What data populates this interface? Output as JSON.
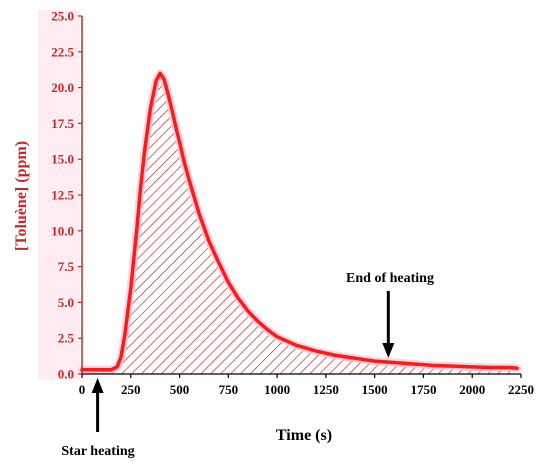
{
  "chart_data": {
    "type": "area",
    "xlabel": "Time (s)",
    "ylabel": "[Toluène] (ppm)",
    "xlim": [
      0,
      2250
    ],
    "ylim": [
      0,
      25
    ],
    "x_ticks": [
      0,
      250,
      500,
      750,
      1000,
      1250,
      1500,
      1750,
      2000,
      2250
    ],
    "y_ticks": [
      0.0,
      2.5,
      5.0,
      7.5,
      10.0,
      12.5,
      15.0,
      17.5,
      20.0,
      22.5,
      25.0
    ],
    "y_tick_labels": [
      "0.0",
      "2.5",
      "5.0",
      "7.5",
      "10.0",
      "12.5",
      "15.0",
      "17.5",
      "20.0",
      "22.5",
      "25.0"
    ],
    "series": [
      {
        "x": [
          0,
          50,
          100,
          150,
          180,
          200,
          220,
          250,
          280,
          300,
          320,
          350,
          380,
          400,
          420,
          440,
          460,
          480,
          500,
          520,
          550,
          600,
          650,
          700,
          750,
          800,
          850,
          900,
          950,
          1000,
          1050,
          1100,
          1200,
          1300,
          1400,
          1500,
          1600,
          1700,
          1800,
          1900,
          2000,
          2100,
          2200,
          2230
        ],
        "y": [
          0.3,
          0.3,
          0.3,
          0.3,
          0.5,
          1.2,
          2.8,
          6.0,
          10.0,
          13.0,
          15.5,
          18.5,
          20.5,
          21.0,
          20.6,
          19.6,
          18.5,
          17.3,
          16.2,
          15.0,
          13.5,
          11.2,
          9.3,
          7.8,
          6.4,
          5.3,
          4.4,
          3.7,
          3.1,
          2.6,
          2.3,
          2.0,
          1.6,
          1.3,
          1.1,
          0.9,
          0.8,
          0.7,
          0.6,
          0.55,
          0.5,
          0.45,
          0.45,
          0.4
        ]
      }
    ],
    "annotations": [
      {
        "text": "Star heating",
        "x": 80,
        "y": 0
      },
      {
        "text": "End of heating",
        "x": 1570,
        "y": 1.0
      }
    ],
    "colors": {
      "line": "#ff1a1a",
      "hatch": "#b22222",
      "axis_label": "#c62828",
      "highlight": "#f8c8d6"
    }
  }
}
